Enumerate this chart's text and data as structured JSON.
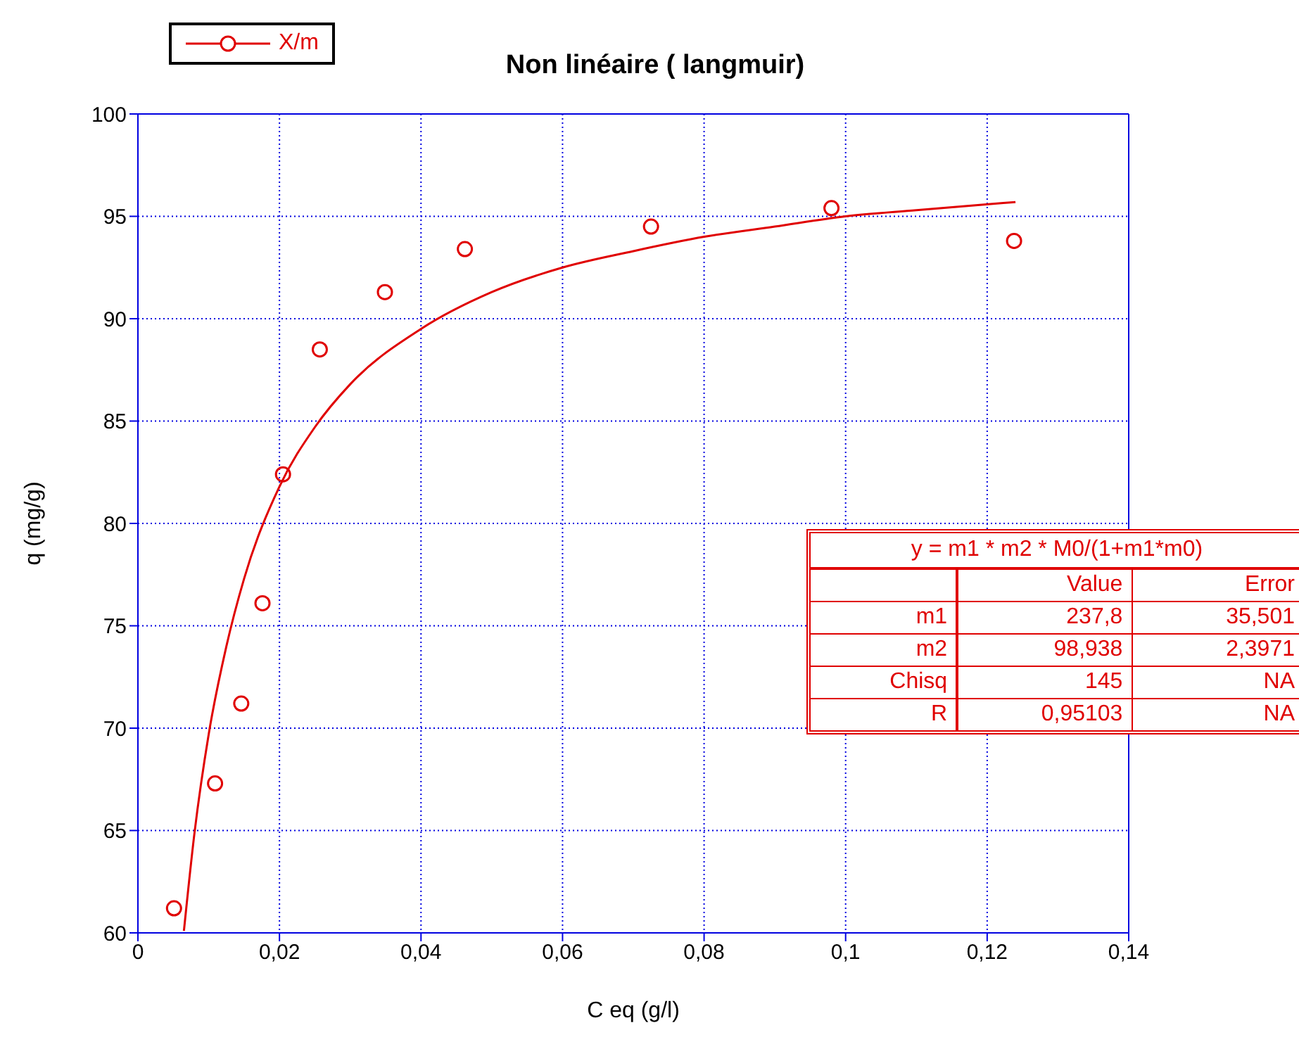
{
  "chart_data": {
    "type": "scatter",
    "title": "Non linéaire ( langmuir)",
    "xlabel": "C eq (g/l)",
    "ylabel": "q (mg/g)",
    "xlim": [
      0,
      0.14
    ],
    "xticks": [
      0,
      {
        "value": 0.02,
        "label": "0,02"
      },
      {
        "value": 0.04,
        "label": "0,04"
      },
      {
        "value": 0.06,
        "label": "0,06"
      },
      {
        "value": 0.08,
        "label": "0,08"
      },
      {
        "value": 0.1,
        "label": "0,1"
      },
      {
        "value": 0.12,
        "label": "0,12"
      },
      {
        "value": 0.14,
        "label": "0,14"
      }
    ],
    "ylim": [
      60,
      100
    ],
    "yticks": [
      60,
      65,
      70,
      75,
      80,
      85,
      90,
      95,
      100
    ],
    "grid": true,
    "legend": "top left",
    "marker": "circle",
    "series": [
      {
        "name": "X/m",
        "color": "#e00000",
        "x": [
          0.0051,
          0.0109,
          0.0146,
          0.0176,
          0.0205,
          0.0257,
          0.0349,
          0.0462,
          0.0725,
          0.098,
          0.1238
        ],
        "values": [
          61.2,
          67.3,
          71.2,
          76.1,
          82.4,
          88.5,
          91.3,
          93.4,
          94.5,
          95.4,
          93.8
        ]
      },
      {
        "type": "line",
        "color": "#e00000",
        "marker": "none",
        "x": [
          0.0065,
          0.008,
          0.01,
          0.0125,
          0.015,
          0.02,
          0.025,
          0.03,
          0.04,
          0.05,
          0.06,
          0.07,
          0.08,
          0.09,
          0.1,
          0.11,
          0.124
        ],
        "values": [
          60.1,
          64.9,
          69.7,
          74.0,
          77.3,
          81.8,
          84.7,
          86.8,
          89.5,
          91.3,
          92.5,
          93.3,
          94.0,
          94.5,
          95.0,
          95.3,
          95.7
        ]
      }
    ],
    "annotations": [
      "y = m1 * m2 * M0/(1+m1*m0)",
      "Value",
      "Error",
      "m1",
      "237,8",
      "35,501",
      "m2",
      "98,938",
      "2,3971",
      "Chisq",
      "145",
      "NA",
      "R",
      "0,95103",
      "NA"
    ]
  }
}
